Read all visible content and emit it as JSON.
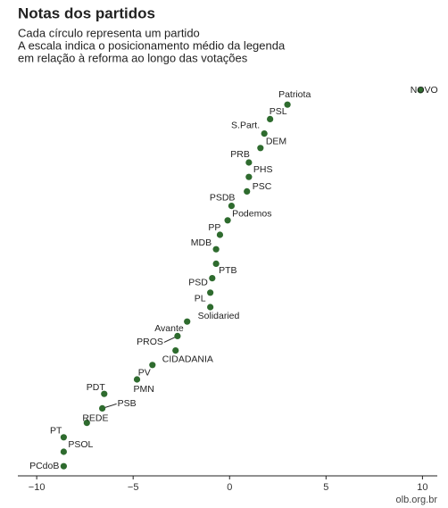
{
  "chart_data": {
    "type": "dot",
    "title": "Notas dos partidos",
    "subtitle": [
      "Cada círculo representa um partido",
      "A escala indica o posicionamento médio da legenda",
      "em relação à reforma ao longo das votações"
    ],
    "source": "olb.org.br",
    "color": "#2e6b2e",
    "categories": [
      "NOVO",
      "Patriota",
      "PSL",
      "S.Part.",
      "DEM",
      "PRB",
      "PHS",
      "PSC",
      "PSDB",
      "Podemos",
      "PP",
      "MDB",
      "PTB",
      "PSD",
      "PL",
      "Solidaried",
      "Avante",
      "PROS",
      "CIDADANIA",
      "PV",
      "PMN",
      "PDT",
      "PSB",
      "REDE",
      "PT",
      "PSOL",
      "PCdoB"
    ],
    "values": [
      9.9,
      3.0,
      2.1,
      1.8,
      1.6,
      1.0,
      1.0,
      0.9,
      0.1,
      -0.1,
      -0.5,
      -0.7,
      -0.7,
      -0.9,
      -1.0,
      -1.0,
      -2.2,
      -2.7,
      -2.8,
      -4.0,
      -4.8,
      -6.5,
      -6.6,
      -7.4,
      -8.6,
      -8.6,
      -8.6
    ],
    "xlim": [
      -10.7,
      11
    ],
    "xticks": [
      {
        "value": -10,
        "label": "−10"
      },
      {
        "value": -5,
        "label": "−5"
      },
      0,
      5,
      10
    ]
  }
}
